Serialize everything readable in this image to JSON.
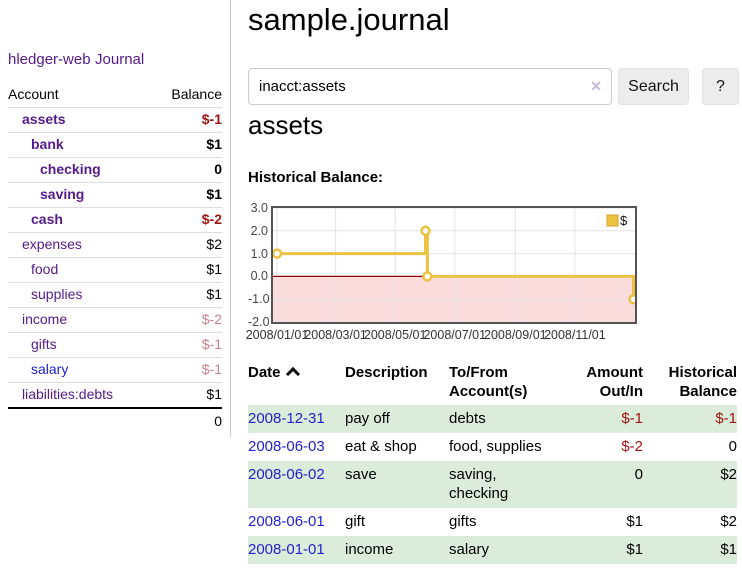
{
  "app": {
    "brand": "hledger-web",
    "nav_journal": "Journal"
  },
  "sidebar": {
    "header": {
      "account": "Account",
      "balance": "Balance"
    },
    "accounts": [
      {
        "name": "assets",
        "balance": "$-1",
        "indent": 0,
        "bold": true
      },
      {
        "name": "bank",
        "balance": "$1",
        "indent": 1,
        "bold": true
      },
      {
        "name": "checking",
        "balance": "0",
        "indent": 2,
        "bold": true
      },
      {
        "name": "saving",
        "balance": "$1",
        "indent": 2,
        "bold": true
      },
      {
        "name": "cash",
        "balance": "$-2",
        "indent": 1,
        "bold": true
      },
      {
        "name": "expenses",
        "balance": "$2",
        "indent": 0,
        "bold": false
      },
      {
        "name": "food",
        "balance": "$1",
        "indent": 1,
        "bold": false
      },
      {
        "name": "supplies",
        "balance": "$1",
        "indent": 1,
        "bold": false
      },
      {
        "name": "income",
        "balance": "$-2",
        "indent": 0,
        "bold": false
      },
      {
        "name": "gifts",
        "balance": "$-1",
        "indent": 1,
        "bold": false
      },
      {
        "name": "salary",
        "balance": "$-1",
        "indent": 1,
        "bold": false,
        "unvisited": true
      },
      {
        "name": "liabilities:debts",
        "balance": "$1",
        "indent": 0,
        "bold": false
      }
    ],
    "total": "0"
  },
  "main": {
    "title": "sample.journal",
    "search": {
      "value": "inacct:assets",
      "clear_icon": "✕",
      "button_label": "Search",
      "help_label": "?"
    },
    "account_heading": "assets",
    "chart_label": "Historical Balance:"
  },
  "chart_data": {
    "type": "line",
    "step": "after",
    "title": "Historical Balance:",
    "series": [
      {
        "name": "$",
        "color": "#edc240",
        "points": [
          [
            "2008/01/01",
            1
          ],
          [
            "2008/06/01",
            2
          ],
          [
            "2008/06/03",
            0
          ],
          [
            "2008/12/31",
            -1
          ]
        ]
      }
    ],
    "x_ticks": [
      "2008/01/01",
      "2008/03/01",
      "2008/05/01",
      "2008/07/01",
      "2008/09/01",
      "2008/11/01"
    ],
    "y_ticks": [
      "3.0",
      "2.0",
      "1.0",
      "0.0",
      "-1.0",
      "-2.0"
    ],
    "xlim": [
      "2008/01/01",
      "2008/12/31"
    ],
    "ylim": [
      -2,
      3
    ],
    "grid": true,
    "legend_position": "top-right",
    "zero_line_color": "#8b0000",
    "negative_region_color": "#fbdcdc",
    "grid_color": "#e4e4e4"
  },
  "register": {
    "headers": {
      "date": "Date",
      "description": "Description",
      "accounts": "To/From Account(s)",
      "amount": "Amount Out/In",
      "balance": "Historical Balance"
    },
    "rows": [
      {
        "date": "2008-12-31",
        "description": "pay off",
        "accounts": "debts",
        "amount": "$-1",
        "balance": "$-1"
      },
      {
        "date": "2008-06-03",
        "description": "eat & shop",
        "accounts": "food, supplies",
        "amount": "$-2",
        "balance": "0"
      },
      {
        "date": "2008-06-02",
        "description": "save",
        "accounts": "saving, checking",
        "amount": "0",
        "balance": "$2"
      },
      {
        "date": "2008-06-01",
        "description": "gift",
        "accounts": "gifts",
        "amount": "$1",
        "balance": "$2"
      },
      {
        "date": "2008-01-01",
        "description": "income",
        "accounts": "salary",
        "amount": "$1",
        "balance": "$1"
      }
    ]
  },
  "colors": {
    "link_purple": "#551a8b",
    "link_blue": "#2222cc",
    "negative_strong": "#a01414",
    "negative_soft": "#c9808a",
    "row_green": "#dcecdb",
    "chart_line": "#edc240"
  }
}
